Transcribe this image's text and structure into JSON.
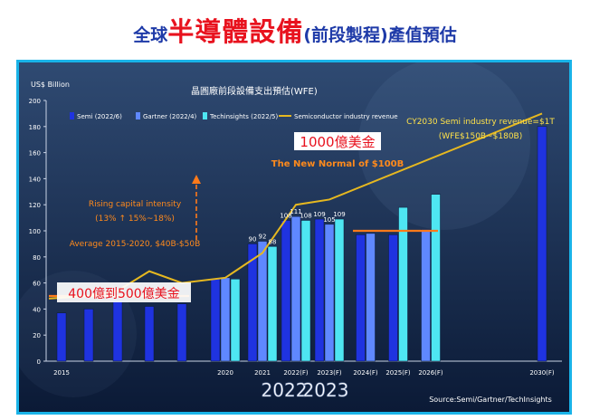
{
  "page": {
    "title_part1": "全球",
    "title_part2": "半導體設備",
    "title_part3": "(前段製程)產值預估"
  },
  "chart_data": {
    "type": "bar",
    "title": "晶圓廠前段設備支出預估(WFE)",
    "ylabel": "US$ Billion",
    "ylim": [
      0,
      200
    ],
    "yticks": [
      0,
      20,
      40,
      60,
      80,
      100,
      120,
      140,
      160,
      180,
      200
    ],
    "grid": false,
    "legend_position": "top",
    "categories": [
      {
        "key": "2015",
        "label": "2015"
      },
      {
        "key": "2016",
        "label": ""
      },
      {
        "key": "2017",
        "label": ""
      },
      {
        "key": "2018",
        "label": ""
      },
      {
        "key": "2019",
        "label": ""
      },
      {
        "key": "2020",
        "label": "2020"
      },
      {
        "key": "2021",
        "label": "2021"
      },
      {
        "key": "2022",
        "label": "2022(F)"
      },
      {
        "key": "2023",
        "label": "2023(F)"
      },
      {
        "key": "2024",
        "label": "2024(F)"
      },
      {
        "key": "2025",
        "label": "2025(F)"
      },
      {
        "key": "2026",
        "label": "2026(F)"
      },
      {
        "key": "2030",
        "label": "2030(F)"
      }
    ],
    "series": [
      {
        "name": "Semi (2022/6)",
        "color": "#1f33e0",
        "values": [
          37,
          40,
          46,
          42,
          44,
          63,
          90,
          108,
          109,
          97,
          97,
          null,
          180
        ],
        "labels": [
          null,
          null,
          null,
          null,
          null,
          null,
          "90",
          "108",
          "109",
          null,
          null,
          null,
          null
        ]
      },
      {
        "name": "Gartner (2022/4)",
        "color": "#5f88ff",
        "values": [
          null,
          null,
          null,
          null,
          null,
          64,
          92,
          111,
          105,
          98,
          null,
          101,
          null
        ],
        "labels": [
          null,
          null,
          null,
          null,
          null,
          null,
          "92",
          "111",
          "105",
          null,
          null,
          null,
          null
        ]
      },
      {
        "name": "Techinsights (2022/5)",
        "color": "#4ee6f2",
        "values": [
          null,
          null,
          null,
          null,
          null,
          63,
          88,
          108,
          109,
          null,
          118,
          128,
          null
        ],
        "labels": [
          null,
          null,
          null,
          null,
          null,
          null,
          "88",
          "108",
          "109",
          null,
          null,
          null,
          null
        ]
      }
    ],
    "revenue_line": {
      "name": "Semiconductor industry revenue",
      "color": "#e6b820",
      "x": [
        "2015",
        "2016",
        "2017",
        "2018",
        "2019",
        "2020",
        "2021",
        "2022",
        "2023",
        "2030"
      ],
      "y": [
        48,
        50,
        54,
        69,
        60,
        64,
        83,
        120,
        124,
        190
      ]
    },
    "reference_lines": [
      {
        "from": "2015",
        "to": "2019",
        "y": 50,
        "color": "#ff7a1a"
      },
      {
        "from": "2024",
        "to": "2026",
        "y": 100,
        "color": "#ff7a1a"
      }
    ],
    "annotations": {
      "forecast_1000": "1000億美金",
      "new_normal": "The New Normal of $100B",
      "cy2030_line1": "CY2030 Semi industry revenue=$1T",
      "cy2030_line2": "(WFE$150B~$180B)",
      "rising_line1": "Rising capital intensity",
      "rising_line2": "(13% ↑ 15%~18%)",
      "average": "Average 2015-2020, $40B-$50B",
      "range_400_500": "400億到500億美金",
      "big_2022": "2022",
      "big_2023": "2023",
      "source": "Source:Semi/Gartner/TechInsights"
    }
  }
}
